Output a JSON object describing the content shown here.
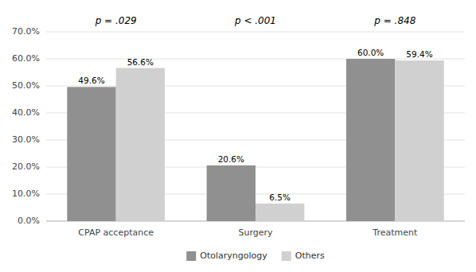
{
  "chart_data": {
    "type": "bar",
    "categories": [
      "CPAP acceptance",
      "Surgery",
      "Treatment"
    ],
    "series": [
      {
        "name": "Otolaryngology",
        "color": "#909090",
        "values": [
          49.6,
          20.6,
          60.0
        ],
        "value_labels": [
          "49.6%",
          "20.6%",
          "60.0%"
        ]
      },
      {
        "name": "Others",
        "color": "#d0d0d0",
        "values": [
          56.6,
          6.5,
          59.4
        ],
        "value_labels": [
          "56.6%",
          "6.5%",
          "59.4%"
        ]
      }
    ],
    "annotations": [
      "p = .029",
      "p < .001",
      "p = .848"
    ],
    "ylim": [
      0,
      70
    ],
    "yticks": [
      {
        "value": 0,
        "label": "0.0%"
      },
      {
        "value": 10,
        "label": "10.0%"
      },
      {
        "value": 20,
        "label": "20.0%"
      },
      {
        "value": 30,
        "label": "30.0%"
      },
      {
        "value": 40,
        "label": "40.0%"
      },
      {
        "value": 50,
        "label": "50.0%"
      },
      {
        "value": 60,
        "label": "60.0%"
      },
      {
        "value": 70,
        "label": "70.0%"
      }
    ],
    "grid": true,
    "data_labels": true,
    "legend": "bottom"
  }
}
